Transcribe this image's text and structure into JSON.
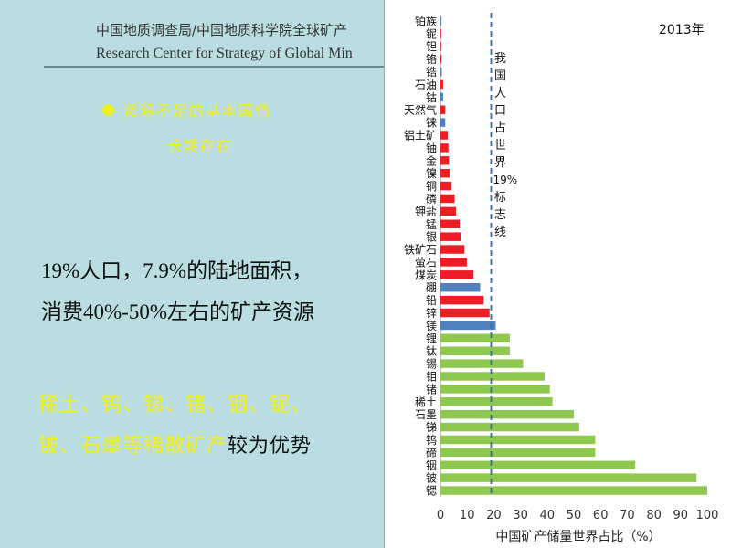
{
  "header": {
    "org_cn": "中国地质调查局/中国地质科学院全球矿产",
    "org_en": "Research Center for Strategy of Global Min"
  },
  "bullet": {
    "line1": "资源不足的基本国情",
    "line2": "长期存在"
  },
  "main": {
    "line1": "19%人口，7.9%的陆地面积，",
    "line2": "消费40%-50%左右的矿产资源",
    "yellow1": "稀土、钨、锑、锗、铟、铌、",
    "yellow2_hl": "铍、石墨等稀散矿产",
    "yellow2_dk": "较为优势"
  },
  "chart_data": {
    "type": "bar",
    "orientation": "horizontal",
    "year_label": "2013年",
    "xlabel": "中国矿产储量世界占比（%）",
    "xlim": [
      0,
      100
    ],
    "xticks": [
      "0",
      "10",
      "20",
      "30",
      "40",
      "50",
      "60",
      "70",
      "80",
      "90",
      "100"
    ],
    "reference_line": {
      "value": 19,
      "label_chars": [
        "我",
        "国",
        "人",
        "口",
        "占",
        "世",
        "界",
        "19%",
        "标",
        "志",
        "线"
      ]
    },
    "colors": {
      "red": "#ee1c25",
      "blue": "#4f81bd",
      "green": "#8fc84e",
      "ref": "#2e6fb5"
    },
    "categories": [
      "铂族",
      "铌",
      "钽",
      "铬",
      "锆",
      "石油",
      "钴",
      "天然气",
      "铼",
      "铝土矿",
      "铀",
      "金",
      "镍",
      "铜",
      "磷",
      "钾盐",
      "锰",
      "银",
      "铁矿石",
      "萤石",
      "煤炭",
      "硼",
      "铅",
      "锌",
      "镁",
      "锂",
      "钛",
      "锡",
      "钼",
      "锗",
      "稀土",
      "石墨",
      "锑",
      "钨",
      "碲",
      "铟",
      "铍",
      "锶"
    ],
    "values": [
      0.4,
      0.3,
      0.3,
      0.4,
      0.5,
      1.0,
      1.0,
      1.8,
      1.8,
      2.8,
      3.0,
      3.2,
      3.5,
      4.2,
      5.3,
      5.8,
      7.2,
      7.6,
      9.0,
      9.9,
      12.4,
      14.9,
      16.2,
      18.4,
      20.7,
      26.0,
      26.0,
      31.0,
      39.0,
      41.0,
      42.0,
      50.0,
      52.0,
      58.0,
      58.0,
      73.0,
      96.0,
      100.0
    ],
    "bar_colors": [
      "blue",
      "red",
      "red",
      "red",
      "blue",
      "red",
      "blue",
      "red",
      "blue",
      "red",
      "red",
      "red",
      "red",
      "red",
      "red",
      "red",
      "red",
      "red",
      "red",
      "red",
      "red",
      "blue",
      "red",
      "red",
      "blue",
      "green",
      "green",
      "green",
      "green",
      "green",
      "green",
      "green",
      "green",
      "green",
      "green",
      "green",
      "green",
      "green"
    ]
  }
}
